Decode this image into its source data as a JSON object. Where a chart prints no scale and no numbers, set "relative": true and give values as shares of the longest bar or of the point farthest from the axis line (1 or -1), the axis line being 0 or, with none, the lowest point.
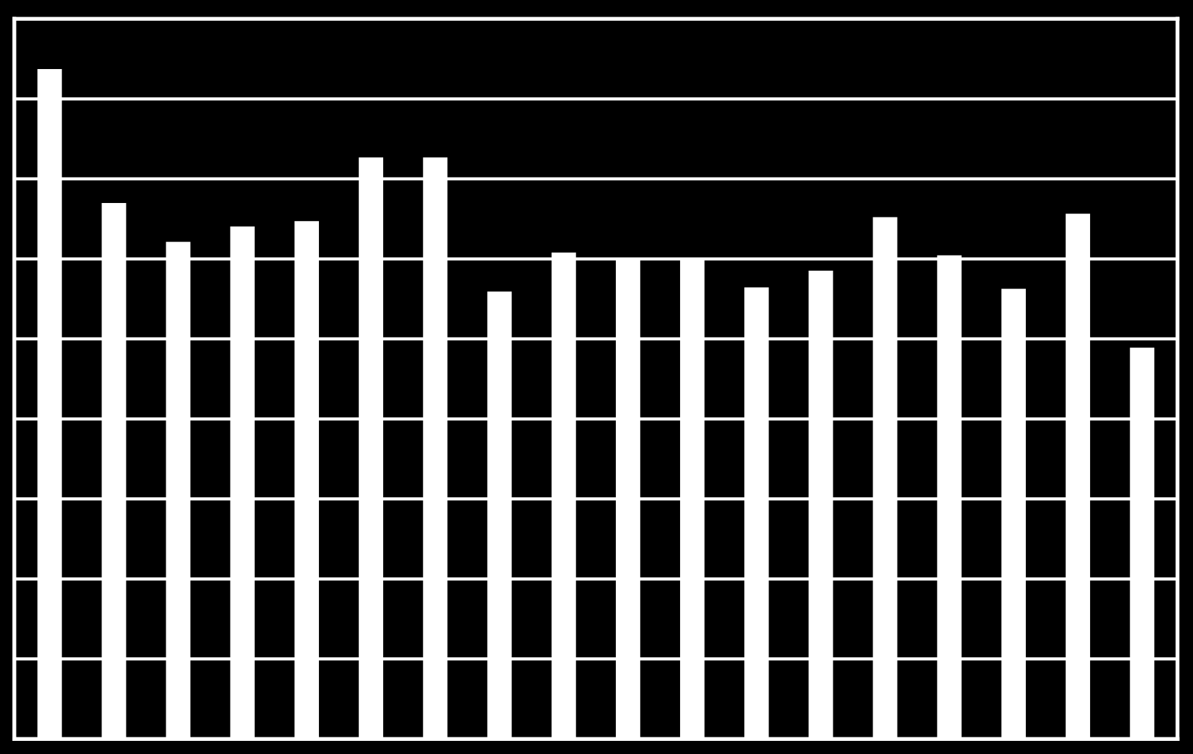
{
  "chart_data": {
    "type": "bar",
    "relative": true,
    "categories": [
      null,
      null,
      null,
      null,
      null,
      null,
      null,
      null,
      null,
      null,
      null,
      null,
      null,
      null,
      null,
      null,
      null,
      null
    ],
    "values": [
      1,
      0.8,
      0.742,
      0.765,
      0.773,
      0.868,
      0.868,
      0.668,
      0.726,
      0.718,
      0.718,
      0.674,
      0.699,
      0.779,
      0.722,
      0.672,
      0.784,
      0.584
    ],
    "color": "#ffffff",
    "grid": "y"
  }
}
